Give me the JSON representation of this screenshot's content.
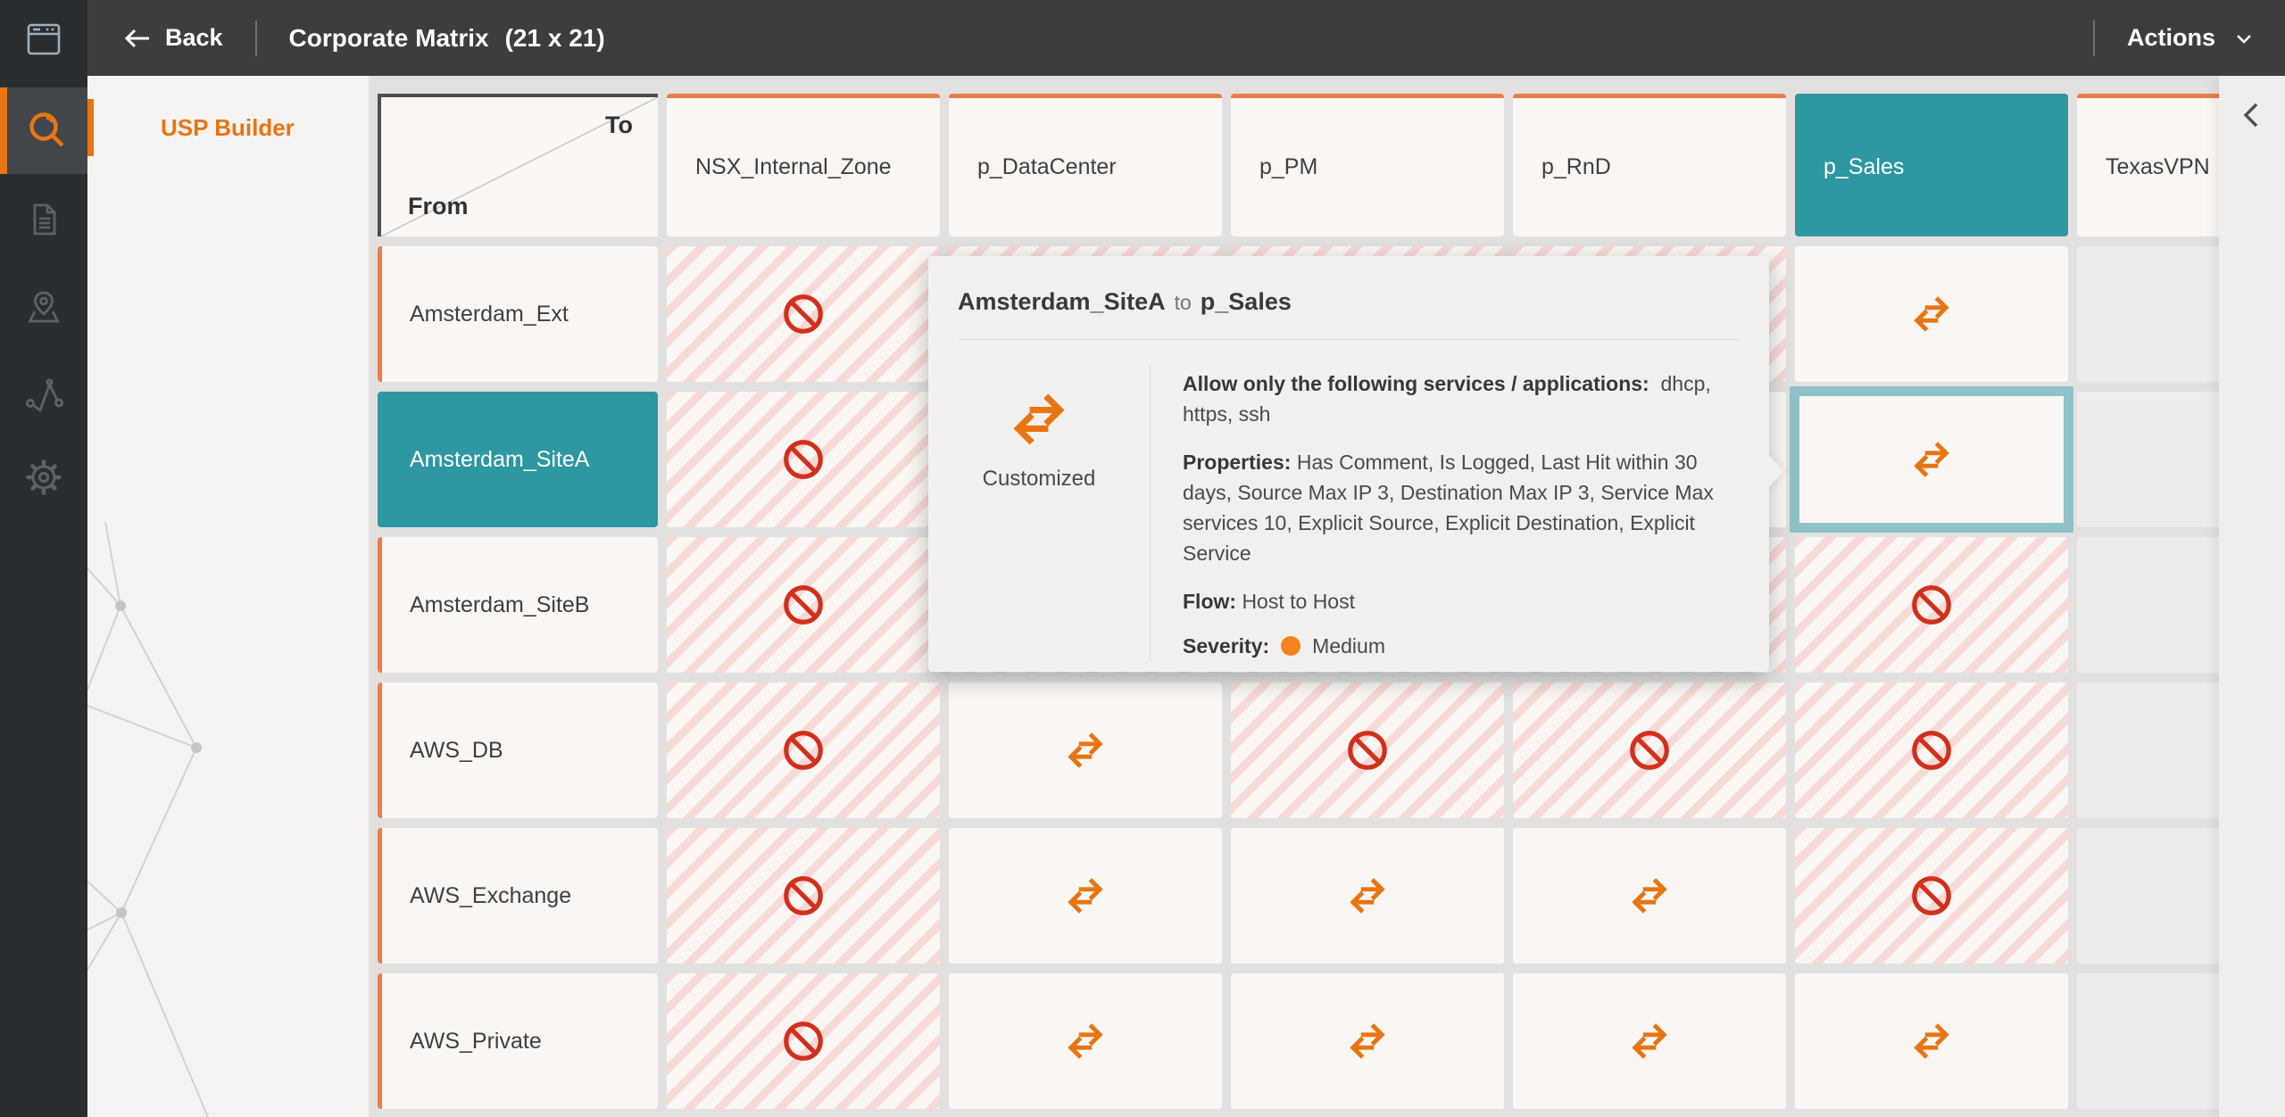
{
  "topbar": {
    "back_label": "Back",
    "title": "Corporate Matrix",
    "dimensions_label": "(21 x 21)",
    "actions_label": "Actions"
  },
  "sidebar": {
    "active_item": "USP Builder"
  },
  "nav_icons": [
    "app-window",
    "search",
    "document",
    "map-location",
    "network-activity",
    "settings-gear"
  ],
  "matrix": {
    "corner": {
      "to_label": "To",
      "from_label": "From"
    },
    "columns": [
      {
        "label": "NSX_Internal_Zone",
        "selected": false
      },
      {
        "label": "p_DataCenter",
        "selected": false
      },
      {
        "label": "p_PM",
        "selected": false
      },
      {
        "label": "p_RnD",
        "selected": false
      },
      {
        "label": "p_Sales",
        "selected": true
      },
      {
        "label": "TexasVPN",
        "selected": false
      }
    ],
    "rows": [
      {
        "label": "Amsterdam_Ext",
        "selected": false
      },
      {
        "label": "Amsterdam_SiteA",
        "selected": true
      },
      {
        "label": "Amsterdam_SiteB",
        "selected": false
      },
      {
        "label": "AWS_DB",
        "selected": false
      },
      {
        "label": "AWS_Exchange",
        "selected": false
      },
      {
        "label": "AWS_Private",
        "selected": false
      }
    ],
    "cells": [
      [
        "blocked",
        "blocked",
        "blocked",
        "blocked",
        "customized",
        "cutoff"
      ],
      [
        "blocked",
        null,
        null,
        null,
        "customized-selected",
        "cutoff"
      ],
      [
        "blocked",
        "blocked",
        "blocked",
        "blocked",
        "blocked",
        "cutoff"
      ],
      [
        "blocked",
        "customized",
        "blocked",
        "blocked",
        "blocked",
        "cutoff"
      ],
      [
        "blocked",
        "customized",
        "customized",
        "customized",
        "blocked",
        "cutoff"
      ],
      [
        "blocked",
        "customized",
        "customized",
        "customized",
        "customized",
        "cutoff"
      ]
    ]
  },
  "popup": {
    "title_from": "Amsterdam_SiteA",
    "title_connector": "to",
    "title_to": "p_Sales",
    "icon_label": "Customized",
    "services_label": "Allow only the following services / applications:",
    "services_value": "dhcp, https, ssh",
    "properties_label": "Properties:",
    "properties_value": "Has Comment, Is Logged, Last Hit within 30 days, Source Max IP 3, Destination Max IP 3, Service Max services 10, Explicit Source, Explicit Destination, Explicit Service",
    "flow_label": "Flow:",
    "flow_value": "Host to Host",
    "severity_label": "Severity:",
    "severity_value": "Medium",
    "severity_color": "#f5831f"
  },
  "colors": {
    "accent_orange": "#e87511",
    "header_border_orange": "#ee7c48",
    "selected_teal": "#2d97a2",
    "selected_cell_border": "#8fc2c7",
    "blocked_red": "#d2301c",
    "hatch_pink": "#f7d9d6",
    "severity_medium": "#f5831f"
  }
}
